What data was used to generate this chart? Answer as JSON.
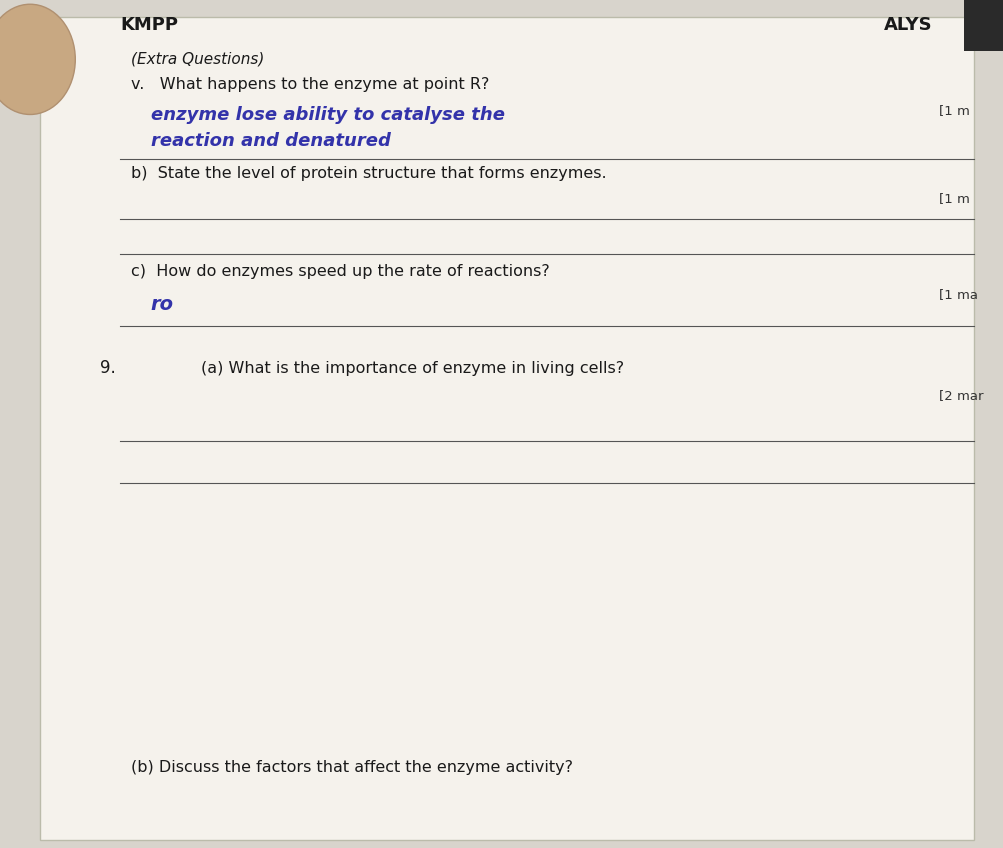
{
  "bg_color": "#d8d4cc",
  "page_bg": "#f5f2ec",
  "header_left": "KMPP",
  "header_right": "ALYS",
  "extra_questions_label": "(Extra Questions)",
  "question_v": "v.   What happens to the enzyme at point R?",
  "marks_v": "[1 m",
  "handwritten_line1": "enzyme lose ability to catalyse the",
  "handwritten_line2": "reaction and denatured",
  "question_b": "b)  State the level of protein structure that forms enzymes.",
  "marks_b": "[1 m",
  "question_c": "c)  How do enzymes speed up the rate of reactions?",
  "marks_c": "[1 ma",
  "handwritten_c": "ro",
  "question_9a_num": "9.",
  "question_9a": "(a) What is the importance of enzyme in living cells?",
  "marks_9a": "[2 mar",
  "question_9b": "(b) Discuss the factors that affect the enzyme activity?",
  "line_color": "#555555",
  "printed_text_color": "#1a1a1a",
  "handwritten_color": "#3333aa",
  "header_color": "#1a1a1a",
  "marks_color": "#333333",
  "finger_color": "#c8a882"
}
